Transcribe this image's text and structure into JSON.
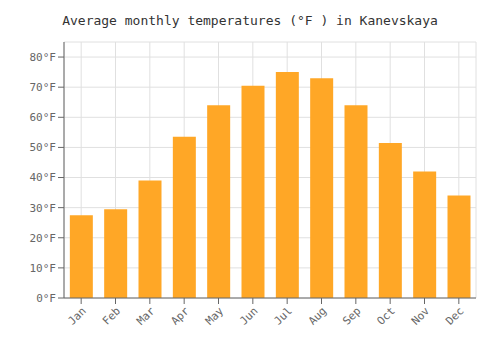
{
  "chart_data": {
    "type": "bar",
    "title": "Average monthly temperatures (°F ) in Kanevskaya",
    "categories": [
      "Jan",
      "Feb",
      "Mar",
      "Apr",
      "May",
      "Jun",
      "Jul",
      "Aug",
      "Sep",
      "Oct",
      "Nov",
      "Dec"
    ],
    "values": [
      27.5,
      29.5,
      39.0,
      53.5,
      64.0,
      70.5,
      75.0,
      73.0,
      64.0,
      51.5,
      42.0,
      34.0
    ],
    "color": "#FFA726",
    "ylim": [
      0,
      85
    ],
    "yticks": [
      {
        "value": 0,
        "label": "0°F"
      },
      {
        "value": 10,
        "label": "10°F"
      },
      {
        "value": 20,
        "label": "20°F"
      },
      {
        "value": 30,
        "label": "30°F"
      },
      {
        "value": 40,
        "label": "40°F"
      },
      {
        "value": 50,
        "label": "50°F"
      },
      {
        "value": 60,
        "label": "60°F"
      },
      {
        "value": 70,
        "label": "70°F"
      },
      {
        "value": 80,
        "label": "80°F"
      }
    ],
    "grid": true
  }
}
